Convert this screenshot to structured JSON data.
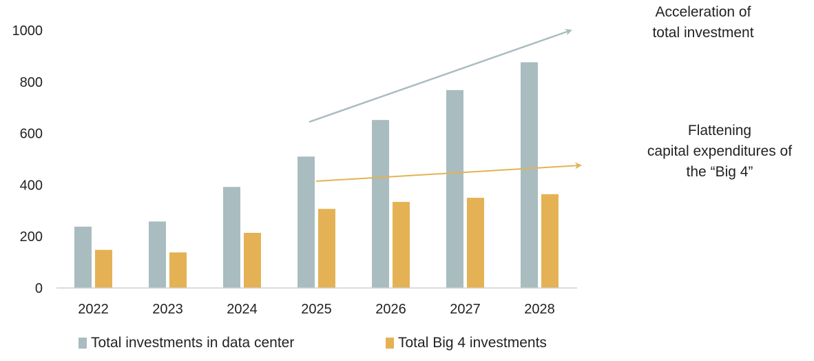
{
  "chart_data": {
    "type": "bar",
    "categories": [
      "2022",
      "2023",
      "2024",
      "2025",
      "2026",
      "2027",
      "2028"
    ],
    "series": [
      {
        "name": "Total investments in data center",
        "values": [
          238,
          258,
          392,
          510,
          652,
          768,
          876
        ],
        "color": "#a9bcbf"
      },
      {
        "name": "Total Big 4 investments",
        "values": [
          148,
          138,
          214,
          307,
          334,
          350,
          364
        ],
        "color": "#e4b254"
      }
    ],
    "ylim": [
      0,
      1000
    ],
    "yticks": [
      "0",
      "200",
      "400",
      "600",
      "800",
      "1000"
    ],
    "title": "",
    "xlabel": "",
    "ylabel": "",
    "legend_position": "bottom",
    "annotations": [
      {
        "id": "accel",
        "lines": [
          "Acceleration of",
          "total investment"
        ],
        "arrow_color": "#a9bcbf",
        "arrow_from": {
          "x": "2025",
          "y": 645
        },
        "arrow_to": {
          "x": "2028+",
          "y": 1000
        }
      },
      {
        "id": "flat",
        "lines": [
          "Flattening",
          "capital expenditures of",
          "the “Big 4”"
        ],
        "arrow_color": "#e4b254",
        "arrow_from": {
          "x": "2025",
          "y": 415
        },
        "arrow_to": {
          "x": "2028+",
          "y": 475
        }
      }
    ]
  }
}
